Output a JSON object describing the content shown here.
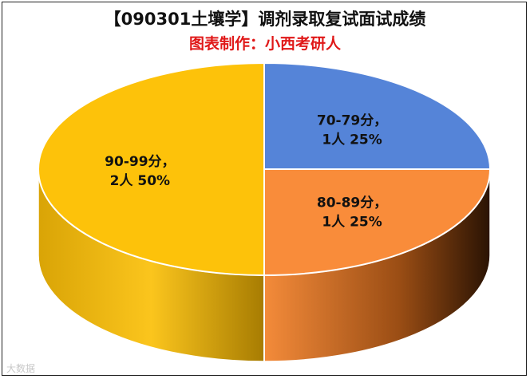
{
  "header": {
    "title": "【090301土壤学】调剂录取复试面试成绩",
    "subtitle": "图表制作：小西考研人"
  },
  "watermark": "大数据",
  "chart_data": {
    "type": "pie",
    "title": "【090301土壤学】调剂录取复试面试成绩",
    "subtitle": "图表制作：小西考研人",
    "slices": [
      {
        "category": "70-79分",
        "count": 1,
        "percent": 25,
        "color": "#5584d8",
        "side": "#3a5ea3",
        "line1": "70-79分，",
        "line2": "1人 25%"
      },
      {
        "category": "80-89分",
        "count": 1,
        "percent": 25,
        "color": "#f98c3a",
        "side": "#7a3e10",
        "line1": "80-89分，",
        "line2": "1人 25%"
      },
      {
        "category": "90-99分",
        "count": 2,
        "percent": 50,
        "color": "#fdc20a",
        "side": "#d79f08",
        "line1": "90-99分，",
        "line2": "2人 50%"
      }
    ]
  }
}
